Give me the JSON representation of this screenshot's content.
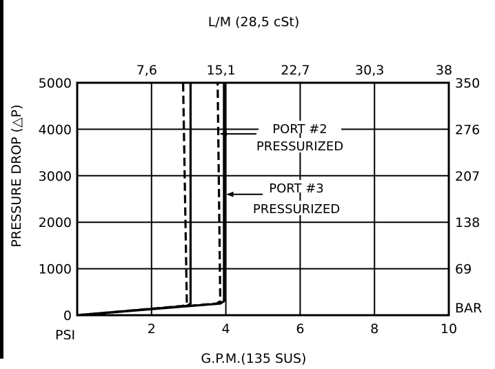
{
  "chart_data": {
    "type": "line",
    "title": "",
    "top_axis_label": "L/M  (28,5  cSt)",
    "xlabel": "G.P.M.(135  SUS)",
    "ylabel": "PRESSURE  DROP  (△P)",
    "xlim": [
      0,
      10
    ],
    "ylim": [
      0,
      5000
    ],
    "x_ticks": [
      "2",
      "4",
      "6",
      "8",
      "10"
    ],
    "x_unit": "PSI",
    "y_ticks": [
      "0",
      "1000",
      "2000",
      "3000",
      "4000",
      "5000"
    ],
    "top_ticks": [
      "7,6",
      "15,1",
      "22,7",
      "30,3",
      "38"
    ],
    "right_ticks": [
      "350",
      "276",
      "207",
      "138",
      "69"
    ],
    "right_unit": "BAR",
    "grid": true,
    "series": [
      {
        "style": "solid",
        "x": [
          0,
          2.95,
          3.05,
          3.05
        ],
        "y": [
          0,
          200,
          250,
          5000
        ]
      },
      {
        "style": "dashed",
        "x": [
          0,
          2.85,
          2.95,
          2.85
        ],
        "y": [
          0,
          200,
          250,
          5000
        ]
      },
      {
        "style": "solid",
        "x": [
          0,
          3.85,
          3.95,
          3.95
        ],
        "y": [
          0,
          250,
          300,
          5000
        ]
      },
      {
        "style": "dashed",
        "x": [
          0,
          3.75,
          3.85,
          3.78
        ],
        "y": [
          0,
          250,
          300,
          5000
        ]
      }
    ],
    "annotations": [
      {
        "line1": "PORT  #2",
        "line2": "PRESSURIZED",
        "points_to_x": 3.82,
        "points_to_y": 3900
      },
      {
        "line1": "PORT  #3",
        "line2": "PRESSURIZED",
        "points_to_x": 4.0,
        "points_to_y": 2600
      }
    ]
  },
  "colors": {
    "ink": "#000000",
    "background": "#ffffff"
  }
}
